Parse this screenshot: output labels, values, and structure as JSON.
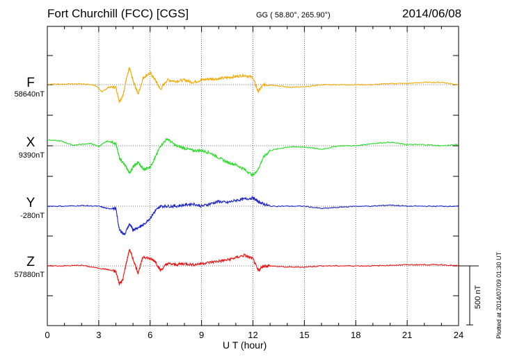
{
  "header": {
    "title": "Fort Churchill (FCC)  [CGS]",
    "coords": "GG ( 58.80°, 265.90°)",
    "date": "2014/06/08"
  },
  "plotted": "Plotted at 2014/07/09 01:30 UT",
  "scale_label": "500 nT",
  "chart_data": {
    "type": "line",
    "xlabel": "U T (hour)",
    "xlim": [
      0,
      24
    ],
    "xticks": [
      "0",
      "3",
      "6",
      "9",
      "12",
      "15",
      "18",
      "21",
      "24"
    ],
    "scale_bar_nT": 500,
    "grid": true,
    "series": [
      {
        "name": "F",
        "baseline": "58640nT",
        "color": "#f5a800",
        "points": [
          [
            0,
            5
          ],
          [
            1,
            5
          ],
          [
            2,
            8
          ],
          [
            2.8,
            -5
          ],
          [
            3.2,
            -60
          ],
          [
            3.6,
            -20
          ],
          [
            4,
            -20
          ],
          [
            4.2,
            -140
          ],
          [
            4.4,
            -100
          ],
          [
            4.6,
            40
          ],
          [
            4.8,
            140
          ],
          [
            5,
            40
          ],
          [
            5.3,
            -80
          ],
          [
            5.6,
            60
          ],
          [
            6,
            100
          ],
          [
            6.3,
            40
          ],
          [
            6.6,
            -40
          ],
          [
            7,
            40
          ],
          [
            7.5,
            30
          ],
          [
            8,
            40
          ],
          [
            8.5,
            20
          ],
          [
            9,
            40
          ],
          [
            9.5,
            50
          ],
          [
            10,
            50
          ],
          [
            10.5,
            60
          ],
          [
            11,
            70
          ],
          [
            11.5,
            80
          ],
          [
            12,
            60
          ],
          [
            12.3,
            -60
          ],
          [
            12.6,
            0
          ],
          [
            13,
            0
          ],
          [
            14,
            -20
          ],
          [
            15,
            -20
          ],
          [
            16,
            0
          ],
          [
            17,
            0
          ],
          [
            18,
            0
          ],
          [
            19,
            0
          ],
          [
            20,
            10
          ],
          [
            21,
            10
          ],
          [
            22,
            20
          ],
          [
            23,
            20
          ],
          [
            24,
            0
          ]
        ]
      },
      {
        "name": "X",
        "baseline": "9390nT",
        "color": "#22dd22",
        "points": [
          [
            0,
            50
          ],
          [
            0.8,
            40
          ],
          [
            1.5,
            5
          ],
          [
            2.5,
            20
          ],
          [
            3,
            -5
          ],
          [
            3.5,
            40
          ],
          [
            4,
            20
          ],
          [
            4.2,
            -100
          ],
          [
            4.6,
            -180
          ],
          [
            4.8,
            -230
          ],
          [
            5,
            -180
          ],
          [
            5.3,
            -140
          ],
          [
            5.6,
            -200
          ],
          [
            6,
            -180
          ],
          [
            6.3,
            -100
          ],
          [
            6.6,
            0
          ],
          [
            7,
            60
          ],
          [
            7.5,
            0
          ],
          [
            8,
            -20
          ],
          [
            8.5,
            -40
          ],
          [
            9,
            -40
          ],
          [
            9.5,
            -60
          ],
          [
            10,
            -100
          ],
          [
            10.5,
            -140
          ],
          [
            11,
            -160
          ],
          [
            11.5,
            -200
          ],
          [
            12,
            -250
          ],
          [
            12.3,
            -200
          ],
          [
            12.6,
            -100
          ],
          [
            13,
            -40
          ],
          [
            14,
            -10
          ],
          [
            15,
            -10
          ],
          [
            16,
            -30
          ],
          [
            17,
            0
          ],
          [
            18,
            0
          ],
          [
            19,
            20
          ],
          [
            20,
            30
          ],
          [
            21,
            10
          ],
          [
            22,
            10
          ],
          [
            23,
            0
          ],
          [
            24,
            10
          ]
        ]
      },
      {
        "name": "Y",
        "baseline": "-280nT",
        "color": "#1a22cc",
        "points": [
          [
            0,
            0
          ],
          [
            1,
            0
          ],
          [
            2,
            5
          ],
          [
            3,
            0
          ],
          [
            3.5,
            -20
          ],
          [
            4,
            -20
          ],
          [
            4.2,
            -200
          ],
          [
            4.5,
            -240
          ],
          [
            4.8,
            -150
          ],
          [
            5,
            -200
          ],
          [
            5.3,
            -180
          ],
          [
            5.6,
            -160
          ],
          [
            6,
            -100
          ],
          [
            6.3,
            -40
          ],
          [
            6.6,
            0
          ],
          [
            7,
            0
          ],
          [
            7.5,
            0
          ],
          [
            8,
            10
          ],
          [
            8.5,
            20
          ],
          [
            9,
            0
          ],
          [
            9.5,
            20
          ],
          [
            10,
            40
          ],
          [
            10.5,
            30
          ],
          [
            11,
            50
          ],
          [
            11.5,
            60
          ],
          [
            12,
            70
          ],
          [
            12.3,
            40
          ],
          [
            12.6,
            20
          ],
          [
            13,
            0
          ],
          [
            14,
            0
          ],
          [
            15,
            0
          ],
          [
            16,
            -20
          ],
          [
            17,
            -10
          ],
          [
            18,
            0
          ],
          [
            19,
            0
          ],
          [
            20,
            10
          ],
          [
            21,
            0
          ],
          [
            22,
            0
          ],
          [
            23,
            0
          ],
          [
            24,
            0
          ]
        ]
      },
      {
        "name": "Z",
        "baseline": "57880nT",
        "color": "#ee1111",
        "points": [
          [
            0,
            0
          ],
          [
            1,
            0
          ],
          [
            2,
            5
          ],
          [
            3,
            -20
          ],
          [
            3.5,
            -30
          ],
          [
            4,
            -50
          ],
          [
            4.2,
            -150
          ],
          [
            4.4,
            -120
          ],
          [
            4.6,
            20
          ],
          [
            4.8,
            140
          ],
          [
            5,
            60
          ],
          [
            5.3,
            -60
          ],
          [
            5.6,
            80
          ],
          [
            6,
            60
          ],
          [
            6.3,
            40
          ],
          [
            6.6,
            -40
          ],
          [
            7,
            20
          ],
          [
            7.5,
            10
          ],
          [
            8,
            20
          ],
          [
            8.5,
            10
          ],
          [
            9,
            20
          ],
          [
            9.5,
            30
          ],
          [
            10,
            40
          ],
          [
            10.5,
            50
          ],
          [
            11,
            70
          ],
          [
            11.5,
            90
          ],
          [
            12,
            60
          ],
          [
            12.3,
            -40
          ],
          [
            12.6,
            0
          ],
          [
            13,
            0
          ],
          [
            14,
            -10
          ],
          [
            15,
            -10
          ],
          [
            16,
            0
          ],
          [
            17,
            0
          ],
          [
            18,
            0
          ],
          [
            19,
            0
          ],
          [
            20,
            5
          ],
          [
            21,
            10
          ],
          [
            22,
            10
          ],
          [
            23,
            10
          ],
          [
            24,
            0
          ]
        ]
      }
    ]
  }
}
